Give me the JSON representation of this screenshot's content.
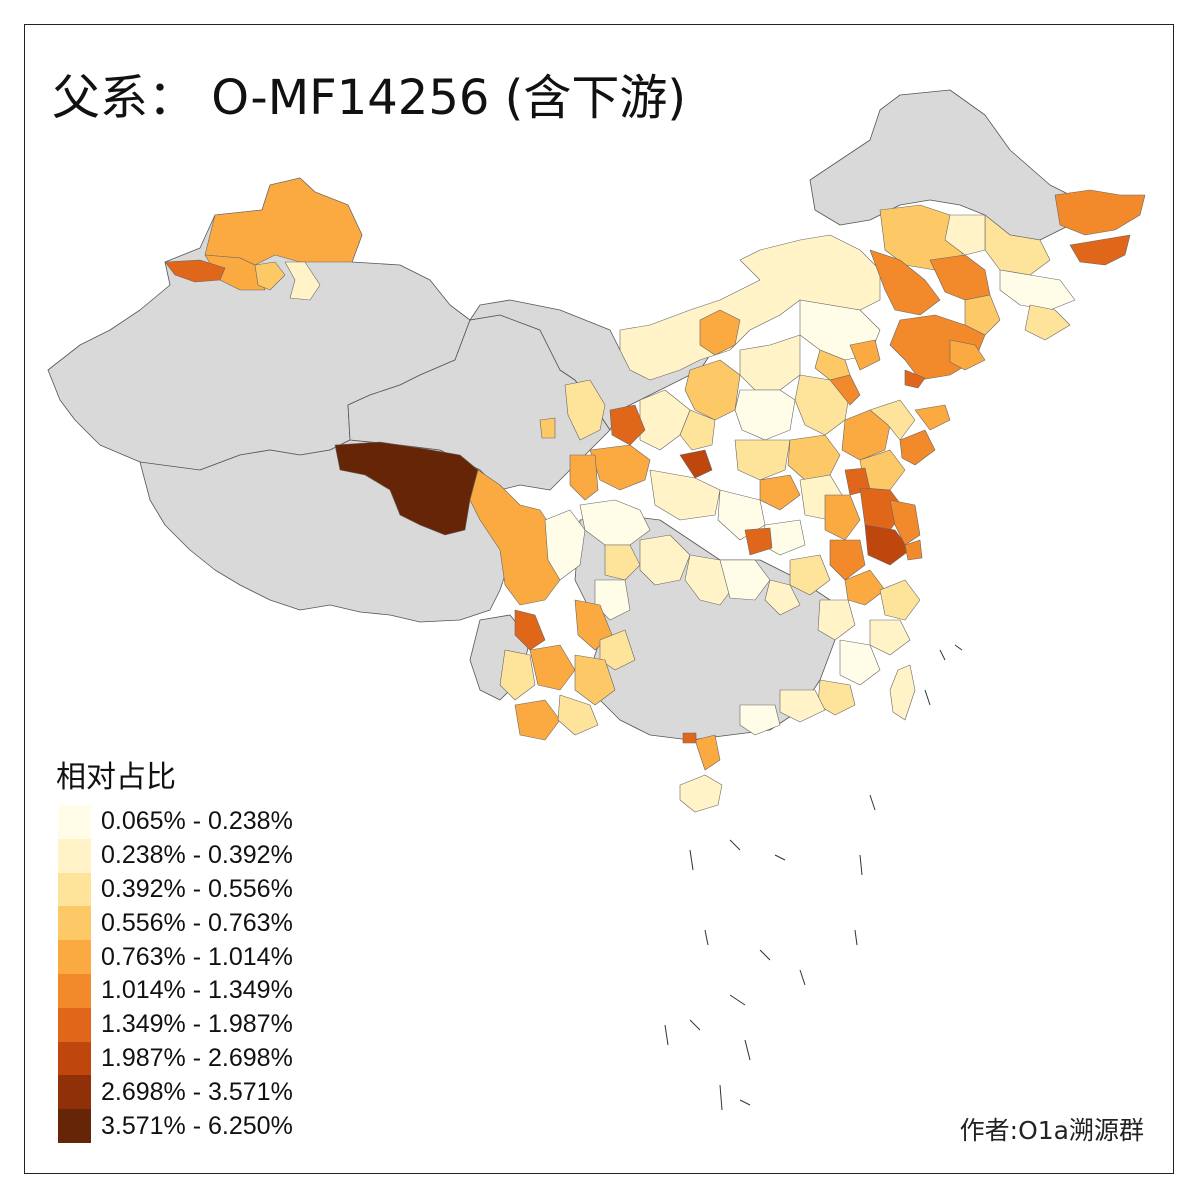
{
  "title": "父系： O-MF14256 (含下游)",
  "legend": {
    "title": "相对占比",
    "classes": [
      {
        "label": "0.065% - 0.238%",
        "color": "#FFFDE8"
      },
      {
        "label": "0.238% - 0.392%",
        "color": "#FFF3C7"
      },
      {
        "label": "0.392% - 0.556%",
        "color": "#FEE39A"
      },
      {
        "label": "0.556% - 0.763%",
        "color": "#FDC866"
      },
      {
        "label": "0.763% - 1.014%",
        "color": "#FBAA41"
      },
      {
        "label": "1.014% - 1.349%",
        "color": "#F2892A"
      },
      {
        "label": "1.349% - 1.987%",
        "color": "#E0661A"
      },
      {
        "label": "1.987% - 2.698%",
        "color": "#BF460C"
      },
      {
        "label": "2.698% - 3.571%",
        "color": "#8F3008"
      },
      {
        "label": "3.571% - 6.250%",
        "color": "#662506"
      }
    ]
  },
  "no_data_color": "#D9D9D9",
  "credit": "作者:O1a溯源群"
}
